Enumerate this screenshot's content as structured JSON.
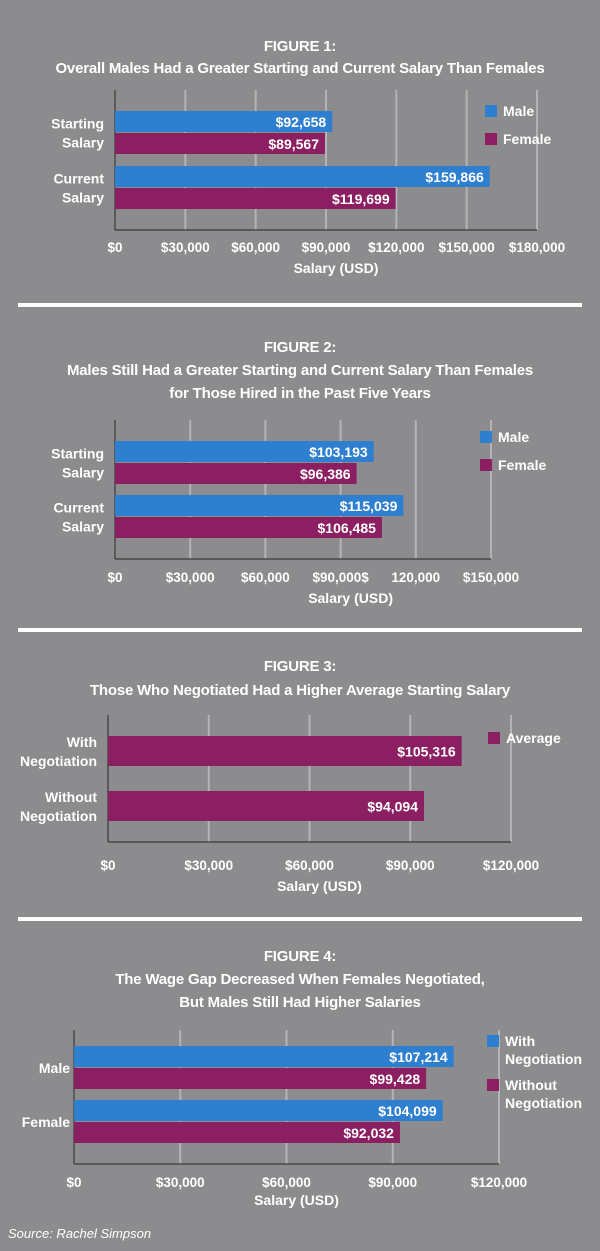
{
  "colors": {
    "male": "#2f7fd0",
    "female": "#8c1f62",
    "background": "#8c8c8e",
    "grid": "#b4b4b6"
  },
  "figures": [
    {
      "heading": "FIGURE 1:",
      "subtitle": "Overall Males Had a Greater Starting and Current Salary Than Females"
    },
    {
      "heading": "FIGURE 2:",
      "subtitle": "Males Still Had a Greater Starting and Current Salary Than Females",
      "subtitle2": "for Those Hired in the Past Five Years"
    },
    {
      "heading": "FIGURE 3:",
      "subtitle": "Those Who Negotiated Had a Higher Average Starting Salary"
    },
    {
      "heading": "FIGURE 4:",
      "subtitle": "The Wage Gap Decreased When Females Negotiated,",
      "subtitle2": "But Males Still Had Higher Salaries"
    }
  ],
  "source": "Source: Rachel Simpson",
  "chart_data": [
    {
      "type": "bar",
      "orientation": "horizontal",
      "categories": [
        [
          "Starting",
          "Salary"
        ],
        [
          "Current",
          "Salary"
        ]
      ],
      "series": [
        {
          "name": "Male",
          "color": "#2f7fd0",
          "values": [
            92658,
            159866
          ],
          "labels": [
            "$92,658",
            "$159,866"
          ]
        },
        {
          "name": "Female",
          "color": "#8c1f62",
          "values": [
            89567,
            119699
          ],
          "labels": [
            "$89,567",
            "$119,699"
          ]
        }
      ],
      "xticks": [
        0,
        30000,
        60000,
        90000,
        120000,
        150000,
        180000
      ],
      "xtick_labels": [
        "$0",
        "$30,000",
        "$60,000",
        "$90,000",
        "$120,000",
        "$150,000",
        "$180,000"
      ],
      "xlim": [
        0,
        180000
      ],
      "xlabel": "Salary (USD)",
      "legend": "top-right",
      "grid": true
    },
    {
      "type": "bar",
      "orientation": "horizontal",
      "categories": [
        [
          "Starting",
          "Salary"
        ],
        [
          "Current",
          "Salary"
        ]
      ],
      "series": [
        {
          "name": "Male",
          "color": "#2f7fd0",
          "values": [
            103193,
            115039
          ],
          "labels": [
            "$103,193",
            "$115,039"
          ]
        },
        {
          "name": "Female",
          "color": "#8c1f62",
          "values": [
            96386,
            106485
          ],
          "labels": [
            "$96,386",
            "$106,485"
          ]
        }
      ],
      "xticks": [
        0,
        30000,
        60000,
        90000,
        120000,
        150000
      ],
      "xtick_labels": [
        "$0",
        "$30,000",
        "$60,000",
        "$90,000$",
        "120,000",
        "$150,000"
      ],
      "xlim": [
        0,
        150000
      ],
      "xlabel": "Salary (USD)",
      "legend": "top-right",
      "grid": true
    },
    {
      "type": "bar",
      "orientation": "horizontal",
      "categories": [
        [
          "With",
          "Negotiation"
        ],
        [
          "Without",
          "Negotiation"
        ]
      ],
      "series": [
        {
          "name": "Average",
          "color": "#8c1f62",
          "values": [
            105316,
            94094
          ],
          "labels": [
            "$105,316",
            "$94,094"
          ]
        }
      ],
      "xticks": [
        0,
        30000,
        60000,
        90000,
        120000
      ],
      "xtick_labels": [
        "$0",
        "$30,000",
        "$60,000",
        "$90,000",
        "$120,000"
      ],
      "xlim": [
        0,
        120000
      ],
      "xlabel": "Salary (USD)",
      "legend": "top-right",
      "grid": true
    },
    {
      "type": "bar",
      "orientation": "horizontal",
      "categories": [
        [
          "Male"
        ],
        [
          "Female"
        ]
      ],
      "series": [
        {
          "name": [
            "With",
            "Negotiation"
          ],
          "color": "#2f7fd0",
          "values": [
            107214,
            104099
          ],
          "labels": [
            "$107,214",
            "$104,099"
          ]
        },
        {
          "name": [
            "Without",
            "Negotiation"
          ],
          "color": "#8c1f62",
          "values": [
            99428,
            92032
          ],
          "labels": [
            "$99,428",
            "$92,032"
          ]
        }
      ],
      "xticks": [
        0,
        30000,
        60000,
        90000,
        120000
      ],
      "xtick_labels": [
        "$0",
        "$30,000",
        "$60,000",
        "$90,000",
        "$120,000"
      ],
      "xlim": [
        0,
        120000
      ],
      "xlabel": "Salary (USD)",
      "legend": "top-right",
      "grid": true
    }
  ]
}
